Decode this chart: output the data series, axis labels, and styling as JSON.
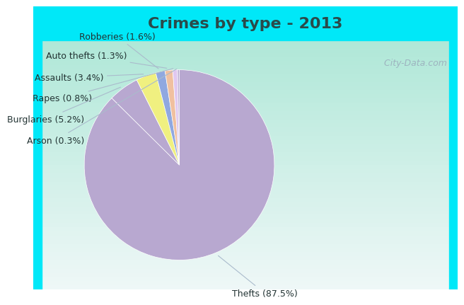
{
  "title": "Crimes by type - 2013",
  "title_color": "#2a4a4a",
  "title_fontsize": 16,
  "slices": [
    {
      "label": "Thefts",
      "pct": 87.5,
      "color": "#b8a8d0"
    },
    {
      "label": "Burglaries",
      "pct": 5.2,
      "color": "#b8a8d0"
    },
    {
      "label": "Assaults",
      "pct": 3.4,
      "color": "#f0f080"
    },
    {
      "label": "Robberies",
      "pct": 1.6,
      "color": "#90a8e0"
    },
    {
      "label": "Auto thefts",
      "pct": 1.3,
      "color": "#f0c0a0"
    },
    {
      "label": "Rapes",
      "pct": 0.8,
      "color": "#e0c8f0"
    },
    {
      "label": "Arson",
      "pct": 0.3,
      "color": "#b8a8d0"
    }
  ],
  "label_texts": [
    "Robberies (1.6%)",
    "Auto thefts (1.3%)",
    "Assaults (3.4%)",
    "Rapes (0.8%)",
    "Burglaries (5.2%)",
    "Arson (0.3%)",
    "Thefts (87.5%)"
  ],
  "cyan_bar_color": "#00e8f8",
  "cyan_side_color": "#00e8f8",
  "bg_tl": "#b0e8d8",
  "bg_tr": "#e8f4f0",
  "bg_bl": "#c8e8d0",
  "bg_br": "#f0f4ee",
  "label_fontsize": 9,
  "label_color": "#223333",
  "watermark": " City-Data.com",
  "watermark_color": "#99aabb"
}
